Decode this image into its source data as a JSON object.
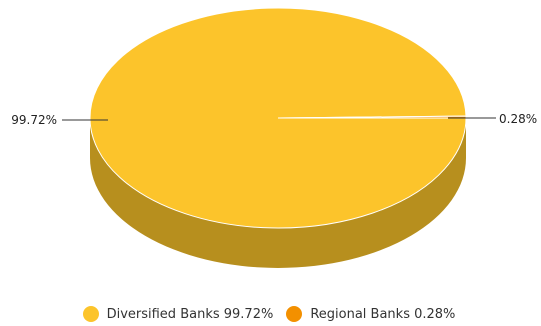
{
  "chart_data": {
    "type": "pie",
    "categories": [
      "Diversified Banks",
      "Regional Banks"
    ],
    "values": [
      99.72,
      0.28
    ],
    "data_labels": [
      "99.72%",
      "0.28%"
    ],
    "colors": [
      "#FCC42B",
      "#F39000"
    ],
    "side_color": "#B78F1E",
    "legend": {
      "placement": "bottom",
      "entries": [
        "Diversified Banks 99.72%",
        "Regional Banks 0.28%"
      ]
    }
  }
}
